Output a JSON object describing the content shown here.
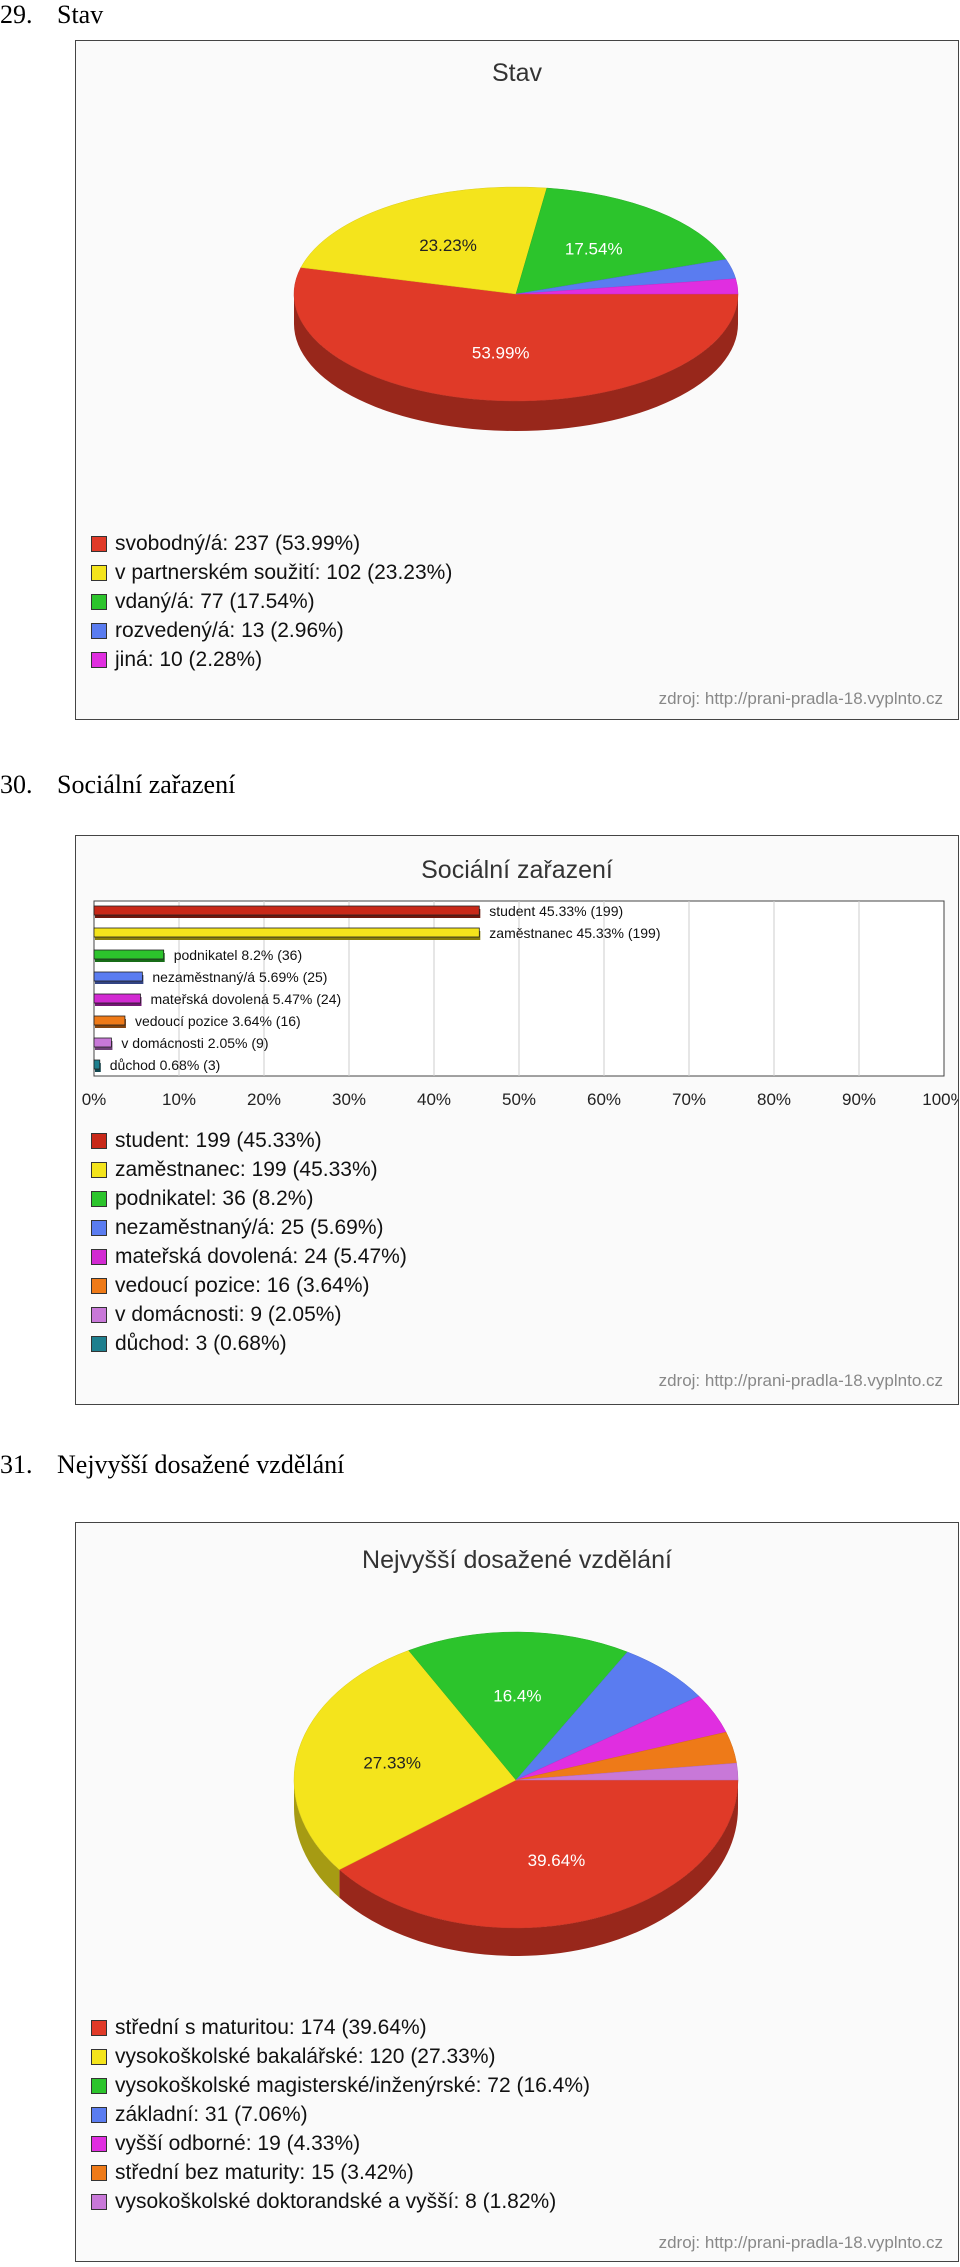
{
  "sections": [
    {
      "number": "29.",
      "heading": "Stav"
    },
    {
      "number": "30.",
      "heading": "Sociální zařazení"
    },
    {
      "number": "31.",
      "heading": "Nejvyšší dosažené vzdělání"
    }
  ],
  "source_text": "zdroj: http://prani-pradla-18.vyplnto.cz",
  "chart_data": [
    {
      "type": "pie",
      "title": "Stav",
      "slices": [
        {
          "label": "svobodný/á",
          "count": 237,
          "percent": 53.99,
          "display": "53.99%",
          "legend": "svobodný/á: 237 (53.99%)",
          "color": "#e03a28"
        },
        {
          "label": "v partnerském soužití",
          "count": 102,
          "percent": 23.23,
          "display": "23.23%",
          "legend": "v partnerském soužití: 102 (23.23%)",
          "color": "#f4e41c"
        },
        {
          "label": "vdaný/á",
          "count": 77,
          "percent": 17.54,
          "display": "17.54%",
          "legend": "vdaný/á: 77 (17.54%)",
          "color": "#2cc42c"
        },
        {
          "label": "rozvedený/á",
          "count": 13,
          "percent": 2.96,
          "display": "",
          "legend": "rozvedený/á: 13 (2.96%)",
          "color": "#5a7cf0"
        },
        {
          "label": "jiná",
          "count": 10,
          "percent": 2.28,
          "display": "",
          "legend": "jiná: 10 (2.28%)",
          "color": "#e02ee0"
        }
      ]
    },
    {
      "type": "bar",
      "title": "Sociální zařazení",
      "orientation": "horizontal",
      "xlim": [
        0,
        100
      ],
      "x_ticks": [
        "0%",
        "10%",
        "20%",
        "30%",
        "40%",
        "50%",
        "60%",
        "70%",
        "80%",
        "90%",
        "100%"
      ],
      "grid": true,
      "bars": [
        {
          "label": "student",
          "count": 199,
          "percent": 45.33,
          "bar_label": "student 45.33% (199)",
          "legend": "student: 199 (45.33%)",
          "color": "#c82818"
        },
        {
          "label": "zaměstnanec",
          "count": 199,
          "percent": 45.33,
          "bar_label": "zaměstnanec 45.33% (199)",
          "legend": "zaměstnanec: 199 (45.33%)",
          "color": "#f4e41c"
        },
        {
          "label": "podnikatel",
          "count": 36,
          "percent": 8.2,
          "bar_label": "podnikatel 8.2% (36)",
          "legend": "podnikatel: 36 (8.2%)",
          "color": "#2cc42c"
        },
        {
          "label": "nezaměstnaný/á",
          "count": 25,
          "percent": 5.69,
          "bar_label": "nezaměstnaný/á 5.69% (25)",
          "legend": "nezaměstnaný/á: 25 (5.69%)",
          "color": "#5a7cf0"
        },
        {
          "label": "mateřská dovolená",
          "count": 24,
          "percent": 5.47,
          "bar_label": "mateřská dovolená 5.47% (24)",
          "legend": "mateřská dovolená: 24 (5.47%)",
          "color": "#d22ad2"
        },
        {
          "label": "vedoucí pozice",
          "count": 16,
          "percent": 3.64,
          "bar_label": "vedoucí pozice 3.64% (16)",
          "legend": "vedoucí pozice: 16 (3.64%)",
          "color": "#ee7a18"
        },
        {
          "label": "v domácnosti",
          "count": 9,
          "percent": 2.05,
          "bar_label": "v domácnosti 2.05% (9)",
          "legend": "v domácnosti: 9 (2.05%)",
          "color": "#c878d8"
        },
        {
          "label": "důchod",
          "count": 3,
          "percent": 0.68,
          "bar_label": "důchod 0.68% (3)",
          "legend": "důchod: 3 (0.68%)",
          "color": "#1e7f8e"
        }
      ]
    },
    {
      "type": "pie",
      "title": "Nejvyšší dosažené vzdělání",
      "slices": [
        {
          "label": "střední s maturitou",
          "count": 174,
          "percent": 39.64,
          "display": "39.64%",
          "legend": "střední s maturitou: 174 (39.64%)",
          "color": "#e03a28"
        },
        {
          "label": "vysokoškolské bakalářské",
          "count": 120,
          "percent": 27.33,
          "display": "27.33%",
          "legend": "vysokoškolské bakalářské: 120 (27.33%)",
          "color": "#f4e41c"
        },
        {
          "label": "vysokoškolské magisterské/inženýrské",
          "count": 72,
          "percent": 16.4,
          "display": "16.4%",
          "legend": "vysokoškolské magisterské/inženýrské: 72 (16.4%)",
          "color": "#2cc42c"
        },
        {
          "label": "základní",
          "count": 31,
          "percent": 7.06,
          "display": "",
          "legend": "základní: 31 (7.06%)",
          "color": "#5a7cf0"
        },
        {
          "label": "vyšší odborné",
          "count": 19,
          "percent": 4.33,
          "display": "",
          "legend": "vyšší odborné: 19 (4.33%)",
          "color": "#e02ee0"
        },
        {
          "label": "střední bez maturity",
          "count": 15,
          "percent": 3.42,
          "display": "",
          "legend": "střední bez maturity: 15 (3.42%)",
          "color": "#ee7a18"
        },
        {
          "label": "vysokoškolské doktorandské a vyšší",
          "count": 8,
          "percent": 1.82,
          "display": "",
          "legend": "vysokoškolské doktorandské a vyšší: 8 (1.82%)",
          "color": "#c878d8"
        }
      ]
    }
  ]
}
